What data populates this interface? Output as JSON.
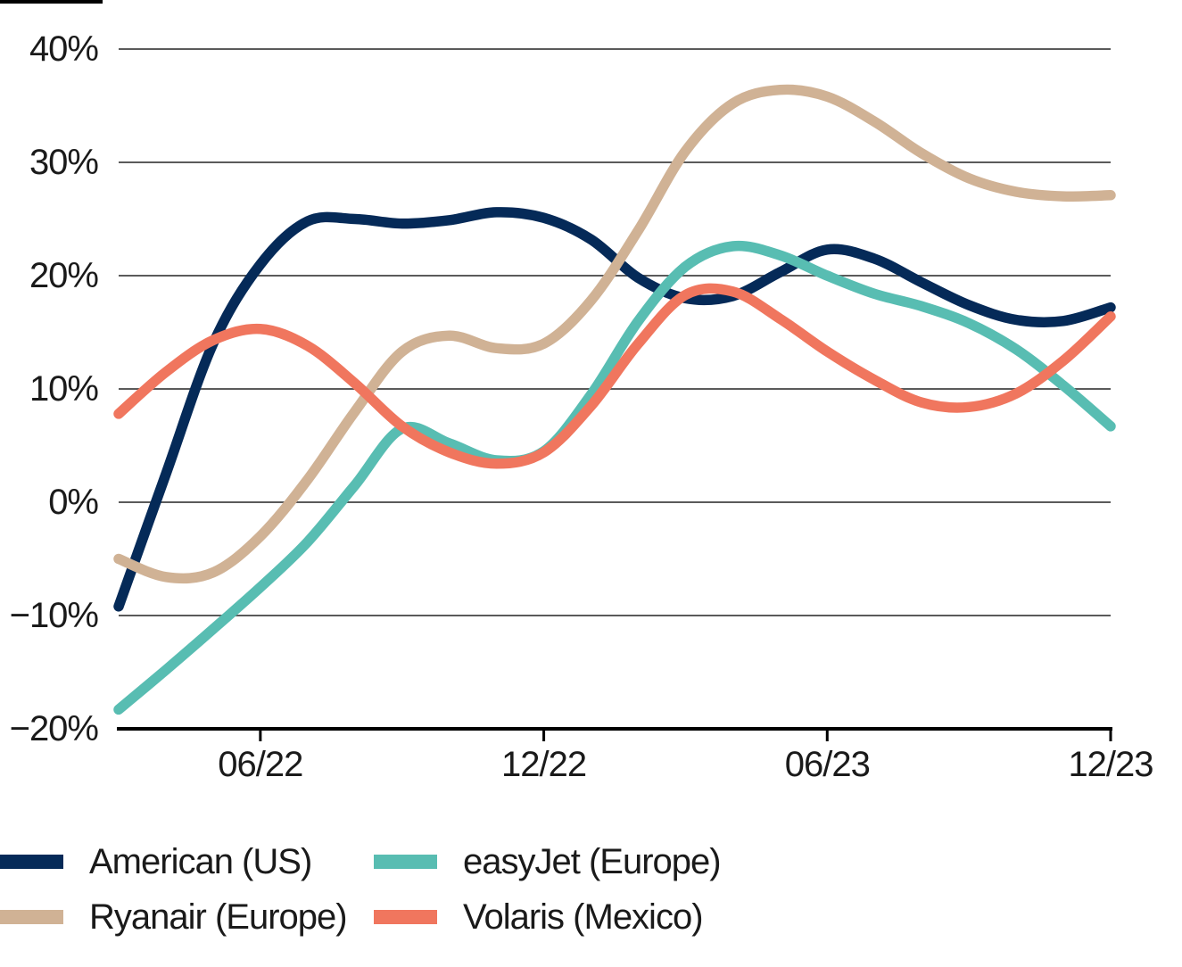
{
  "page": {
    "background": "#ffffff",
    "top_rule_color": "#000000"
  },
  "styles": {
    "gridline_color": "#5a5a5a",
    "axis_color": "#000000",
    "text_color": "#1a1a1a",
    "line_width": 11.5
  },
  "chart_data": {
    "type": "line",
    "title": "",
    "xlabel": "",
    "ylabel": "",
    "unit": "percent",
    "grid": "horizontal",
    "legend_position": "bottom-left",
    "ylim": [
      -20,
      40
    ],
    "x": [
      "03/22",
      "04/22",
      "05/22",
      "06/22",
      "07/22",
      "08/22",
      "09/22",
      "10/22",
      "11/22",
      "12/22",
      "01/23",
      "02/23",
      "03/23",
      "04/23",
      "05/23",
      "06/23",
      "07/23",
      "08/23",
      "09/23",
      "10/23",
      "11/23",
      "12/23"
    ],
    "xticks": [
      {
        "label": "06/22",
        "month_index": 3
      },
      {
        "label": "12/22",
        "month_index": 9
      },
      {
        "label": "06/23",
        "month_index": 15
      },
      {
        "label": "12/23",
        "month_index": 21
      }
    ],
    "yticks": [
      {
        "label": "40%",
        "value": 40
      },
      {
        "label": "30%",
        "value": 30
      },
      {
        "label": "20%",
        "value": 20
      },
      {
        "label": "10%",
        "value": 10
      },
      {
        "label": "0%",
        "value": 0
      },
      {
        "label": "−10%",
        "value": -10
      },
      {
        "label": "−20%",
        "value": -20
      }
    ],
    "series": [
      {
        "name": "American (US)",
        "color": "#052a58",
        "values": [
          -9.2,
          2.5,
          14.0,
          21.0,
          24.8,
          25.0,
          24.6,
          24.9,
          25.6,
          25.1,
          23.2,
          19.8,
          18.0,
          18.2,
          20.3,
          22.3,
          21.5,
          19.4,
          17.4,
          16.1,
          16.0,
          17.2
        ]
      },
      {
        "name": "Ryanair (Europe)",
        "color": "#d0b295",
        "values": [
          -5.0,
          -6.6,
          -6.2,
          -3.0,
          2.0,
          8.0,
          13.3,
          14.7,
          13.6,
          14.0,
          17.8,
          24.0,
          31.0,
          35.2,
          36.4,
          35.8,
          33.6,
          30.8,
          28.6,
          27.4,
          27.0,
          27.1
        ]
      },
      {
        "name": "easyJet (Europe)",
        "color": "#58bdb2",
        "values": [
          -18.3,
          -14.8,
          -11.2,
          -7.5,
          -3.5,
          1.5,
          6.5,
          5.2,
          3.7,
          4.5,
          9.5,
          16.0,
          20.8,
          22.6,
          21.8,
          20.0,
          18.4,
          17.3,
          15.8,
          13.5,
          10.3,
          6.7
        ]
      },
      {
        "name": "Volaris (Mexico)",
        "color": "#f0765e",
        "values": [
          7.8,
          11.5,
          14.3,
          15.3,
          13.8,
          10.5,
          6.7,
          4.4,
          3.4,
          4.4,
          8.5,
          14.0,
          18.3,
          18.6,
          16.2,
          13.3,
          10.8,
          8.8,
          8.4,
          9.6,
          12.5,
          16.4
        ]
      }
    ],
    "legend_order": [
      "American (US)",
      "easyJet (Europe)",
      "Ryanair (Europe)",
      "Volaris (Mexico)"
    ]
  }
}
